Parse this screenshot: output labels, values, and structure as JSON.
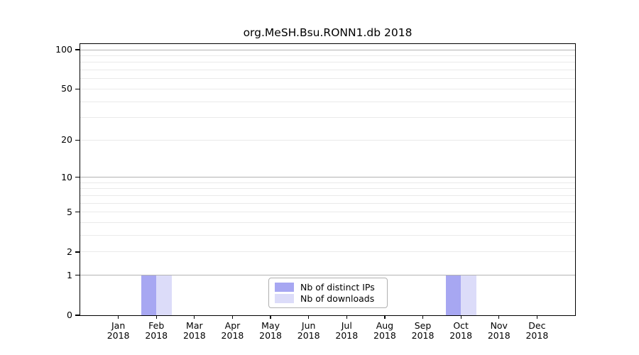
{
  "title": "org.MeSH.Bsu.RONN1.db 2018",
  "colors": {
    "distinct_ips": "#a7a7f2",
    "downloads": "#dcdcf9",
    "grid_major": "#b3b3b3",
    "grid_minor": "#eaeaea",
    "axis": "#000000",
    "legend_border": "#b0b0b0",
    "background": "#ffffff",
    "text": "#000000"
  },
  "legend": {
    "items": [
      {
        "label": "Nb of distinct IPs",
        "color_key": "distinct_ips"
      },
      {
        "label": "Nb of downloads",
        "color_key": "downloads"
      }
    ],
    "position": "lower center"
  },
  "chart_data": {
    "type": "bar",
    "title": "org.MeSH.Bsu.RONN1.db 2018",
    "categories": [
      "Jan 2018",
      "Feb 2018",
      "Mar 2018",
      "Apr 2018",
      "May 2018",
      "Jun 2018",
      "Jul 2018",
      "Aug 2018",
      "Sep 2018",
      "Oct 2018",
      "Nov 2018",
      "Dec 2018"
    ],
    "series": [
      {
        "name": "Nb of distinct IPs",
        "values": [
          0,
          1,
          0,
          0,
          0,
          0,
          0,
          0,
          0,
          1,
          0,
          0
        ]
      },
      {
        "name": "Nb of downloads",
        "values": [
          0,
          1,
          0,
          0,
          0,
          0,
          0,
          0,
          0,
          1,
          0,
          0
        ]
      }
    ],
    "xlabel": "",
    "ylabel": "",
    "yscale": "log1p",
    "ylim": [
      0,
      110
    ],
    "yticks": [
      0,
      1,
      2,
      5,
      10,
      20,
      50,
      100
    ],
    "grid_major_values": [
      1,
      10,
      100
    ],
    "grid_minor_values": [
      2,
      3,
      4,
      5,
      6,
      7,
      8,
      9,
      20,
      30,
      40,
      50,
      60,
      70,
      80,
      90
    ],
    "grid": "horizontal",
    "legend_position": "lower center"
  }
}
